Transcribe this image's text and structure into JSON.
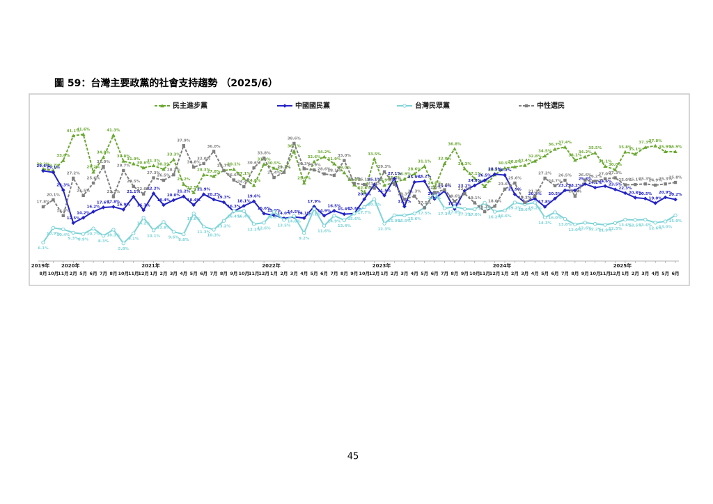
{
  "header": {
    "title": "圖 59：台灣主要政黨的社會支持趨勢 （2025/6）"
  },
  "chart_data": {
    "type": "line",
    "categories": [
      "8月",
      "10月",
      "11月",
      "2月",
      "5月",
      "6月",
      "7月",
      "8月",
      "10月",
      "11月",
      "12月",
      "1月",
      "2月",
      "3月",
      "4月",
      "5月",
      "6月",
      "7月",
      "8月",
      "9月",
      "10月",
      "11月",
      "12月",
      "1月",
      "2月",
      "3月",
      "4月",
      "5月",
      "6月",
      "7月",
      "8月",
      "9月",
      "10月",
      "12月",
      "1月",
      "2月",
      "3月",
      "4月",
      "5月",
      "6月",
      "7月",
      "8月",
      "9月",
      "10月",
      "11月",
      "12月",
      "1月",
      "2月",
      "3月",
      "4月",
      "5月",
      "6月",
      "7月",
      "8月",
      "9月",
      "10月",
      "11月",
      "12月",
      "1月",
      "2月",
      "3月",
      "4月",
      "5月",
      "6月"
    ],
    "category_groups": [
      {
        "name": "2019年",
        "count": 3
      },
      {
        "name": "2020年",
        "count": 8
      },
      {
        "name": "2021年",
        "count": 12
      },
      {
        "name": "2022年",
        "count": 11
      },
      {
        "name": "2023年",
        "count": 12
      },
      {
        "name": "2024年",
        "count": 12
      },
      {
        "name": "2025年",
        "count": 6
      }
    ],
    "ylim": [
      0,
      45
    ],
    "series": [
      {
        "name": "民主進步黨",
        "color": "#6aa832",
        "dash": true,
        "marker": "triangle",
        "values": [
          30.2,
          29.7,
          33.0,
          41.1,
          41.6,
          29.2,
          34.0,
          41.3,
          32.8,
          31.9,
          30.6,
          31.3,
          30.1,
          33.3,
          25.2,
          22.5,
          28.3,
          27.8,
          29.7,
          30.1,
          27.1,
          24.8,
          31.8,
          30.5,
          29.2,
          36.1,
          25.6,
          32.6,
          34.2,
          31.9,
          29.0,
          25.0,
          22.4,
          33.5,
          24.9,
          25.7,
          26.9,
          28.6,
          31.1,
          24.0,
          32.0,
          36.8,
          30.3,
          27.1,
          24.5,
          28.3,
          30.5,
          30.9,
          31.4,
          32.8,
          34.5,
          36.7,
          37.4,
          33.1,
          34.2,
          35.5,
          31.1,
          30.0,
          35.8,
          35.1,
          37.3,
          37.8,
          35.9,
          35.9
        ],
        "value_labels": [
          "30.2%",
          "29.7%",
          "33.0%",
          "41.1%",
          "41.6%",
          "29.2%",
          "34.0%",
          "41.3%",
          "32.8%",
          "31.9%",
          "30.6%",
          "31.3%",
          "30.1%",
          "33.3%",
          "25.2%",
          "22.5%",
          "28.3%",
          "27.8%",
          "29.7%",
          "30.1%",
          "27.1%",
          "24.8%",
          "31.8%",
          "30.5%",
          "29.2%",
          "36.1%",
          "25.6%",
          "32.6%",
          "34.2%",
          "31.9%",
          "29.0%",
          "25.0%",
          "22.4%",
          "33.5%",
          "24.9%",
          "25.7%",
          "26.9%",
          "28.6%",
          "31.1%",
          "24.0%",
          "32.0%",
          "36.8%",
          "30.3%",
          "27.1%",
          "24.5%",
          "28.3%",
          "30.5%",
          "30.9%",
          "31.4%",
          "32.8%",
          "34.5%",
          "36.7%",
          "37.4%",
          "33.1%",
          "34.2%",
          "35.5%",
          "31.1%",
          "30.0%",
          "35.8%",
          "35.1%",
          "37.3%",
          "37.8%",
          "35.9%",
          "35.9%"
        ]
      },
      {
        "name": "中國國民黨",
        "color": "#2222c4",
        "dash": false,
        "marker": "diamond",
        "values": [
          29.6,
          29.1,
          23.3,
          12.5,
          14.2,
          16.2,
          17.6,
          17.8,
          16.9,
          21.1,
          16.7,
          22.2,
          18.4,
          20.0,
          21.2,
          18.4,
          21.9,
          20.2,
          19.3,
          16.3,
          18.1,
          19.6,
          15.6,
          15.0,
          14.0,
          14.5,
          14.1,
          17.9,
          14.9,
          16.5,
          15.4,
          15.6,
          20.3,
          25.1,
          21.5,
          27.1,
          17.9,
          25.9,
          26.2,
          20.4,
          23.0,
          17.1,
          23.1,
          24.8,
          26.5,
          28.5,
          28.2,
          21.9,
          19.2,
          20.5,
          17.8,
          20.5,
          23.2,
          23.2,
          25.3,
          24.1,
          24.6,
          23.5,
          22.3,
          20.8,
          20.5,
          19.0,
          20.9,
          20.2
        ],
        "value_labels": [
          "29.6%",
          "29.1%",
          "23.3%",
          "12.5%",
          "14.2%",
          "16.2%",
          "17.6%",
          "17.8%",
          "16.9%",
          "21.1%",
          "16.7%",
          "22.2%",
          "18.4%",
          "20.0%",
          "21.2%",
          "18.4%",
          "21.9%",
          "20.2%",
          "19.3%",
          "16.3%",
          "18.1%",
          "19.6%",
          "15.6%",
          "15.0%",
          "14.0%",
          "14.5%",
          "14.1%",
          "17.9%",
          "14.9%",
          "16.5%",
          "15.4%",
          "15.6%",
          "20.3%",
          "25.1%",
          "21.5%",
          "27.1%",
          "17.9%",
          "25.9%",
          "26.2%",
          "20.4%",
          "23.0%",
          "17.1%",
          "23.1%",
          "24.8%",
          "26.5%",
          "28.5%",
          "28.2%",
          "21.9%",
          "19.2%",
          "20.5%",
          "17.8%",
          "20.5%",
          "23.2%",
          "23.2%",
          "25.3%",
          "24.1%",
          "24.6%",
          "23.5%",
          "22.3%",
          "20.8%",
          "20.5%",
          "19.0%",
          "20.9%",
          "20.2%"
        ]
      },
      {
        "name": "台灣民眾黨",
        "color": "#7dd3d8",
        "dash": false,
        "marker": "circle",
        "values": [
          6.1,
          10.9,
          10.4,
          9.3,
          8.9,
          10.7,
          8.3,
          10.3,
          5.8,
          9.1,
          14.2,
          10.1,
          12.8,
          9.6,
          8.8,
          15.6,
          11.3,
          10.3,
          13.2,
          16.4,
          16.4,
          12.1,
          12.6,
          16.2,
          13.5,
          14.8,
          9.2,
          17.1,
          11.6,
          14.9,
          13.4,
          15.6,
          17.7,
          20.3,
          12.3,
          15.0,
          15.0,
          15.6,
          17.5,
          22.5,
          17.3,
          17.8,
          17.1,
          17.0,
          19.1,
          16.2,
          16.6,
          19.2,
          18.6,
          19.2,
          14.3,
          16.0,
          13.8,
          12.0,
          12.6,
          12.2,
          11.9,
          12.5,
          13.6,
          13.5,
          13.6,
          12.6,
          13.0,
          15.0
        ],
        "value_labels": [
          "6.1%",
          "10.9%",
          "10.4%",
          "9.3%",
          "8.9%",
          "10.7%",
          "8.3%",
          "10.3%",
          "5.8%",
          "9.1%",
          "14.2%",
          "10.1%",
          "12.8%",
          "9.6%",
          "8.8%",
          "15.6%",
          "11.3%",
          "10.3%",
          "13.2%",
          "16.4%",
          "16.4%",
          "12.1%",
          "12.6%",
          "16.2%",
          "13.5%",
          "14.8%",
          "9.2%",
          "17.1%",
          "11.6%",
          "14.9%",
          "13.4%",
          "15.6%",
          "17.7%",
          "20.3%",
          "12.3%",
          "15.0%",
          "15.0%",
          "15.6%",
          "17.5%",
          "22.5%",
          "17.3%",
          "17.8%",
          "17.1%",
          "17.0%",
          "19.1%",
          "16.2%",
          "16.6%",
          "19.2%",
          "18.6%",
          "19.2%",
          "14.3%",
          "16.0%",
          "13.8%",
          "12.0%",
          "12.6%",
          "12.2%",
          "11.9%",
          "12.5%",
          "13.6%",
          "13.5%",
          "13.6%",
          "12.6%",
          "13.0%",
          "15.0%"
        ]
      },
      {
        "name": "中性選民",
        "color": "#7f7f7f",
        "dash": true,
        "marker": "square",
        "values": [
          17.8,
          20.1,
          14.9,
          27.2,
          21.5,
          25.6,
          31.0,
          21.1,
          29.7,
          24.5,
          22.0,
          27.3,
          26.5,
          28.3,
          37.9,
          30.8,
          32.0,
          36.0,
          29.7,
          26.6,
          24.4,
          30.6,
          33.8,
          27.4,
          29.1,
          38.6,
          30.3,
          29.9,
          28.6,
          28.1,
          33.0,
          25.5,
          25.1,
          23.9,
          29.3,
          25.2,
          20.3,
          21.3,
          17.5,
          22.5,
          23.4,
          19.6,
          22.1,
          19.1,
          16.2,
          18.0,
          23.6,
          25.6,
          19.2,
          21.3,
          27.2,
          24.7,
          26.5,
          21.3,
          26.6,
          26.2,
          27.0,
          27.3,
          25.0,
          25.1,
          25.3,
          24.9,
          25.3,
          25.8
        ],
        "value_labels": [
          "17.8%",
          "20.1%",
          "14.9%",
          "27.2%",
          "21.5%",
          "25.6%",
          "31.0%",
          "21.1%",
          "29.7%",
          "24.5%",
          "22.0%",
          "27.3%",
          "26.5%",
          "28.3%",
          "37.9%",
          "30.8%",
          "32.0%",
          "36.0%",
          "29.7%",
          "26.6%",
          "24.4%",
          "30.6%",
          "33.8%",
          "27.4%",
          "29.1%",
          "38.6%",
          "30.3%",
          "29.9%",
          "28.6%",
          "28.1%",
          "33.0%",
          "25.5%",
          "25.1%",
          "23.9%",
          "29.3%",
          "25.2%",
          "20.3%",
          "21.3%",
          "17.5%",
          "22.5%",
          "23.4%",
          "19.6%",
          "22.1%",
          "19.1%",
          "16.2%",
          "18.0%",
          "23.6%",
          "25.6%",
          "19.2%",
          "21.3%",
          "27.2%",
          "24.7%",
          "26.5%",
          "21.3%",
          "26.6%",
          "26.2%",
          "27.0%",
          "27.3%",
          "25.0%",
          "25.1%",
          "25.3%",
          "24.9%",
          "25.3%",
          "25.8%"
        ]
      }
    ]
  },
  "footer": {
    "page": "45"
  }
}
